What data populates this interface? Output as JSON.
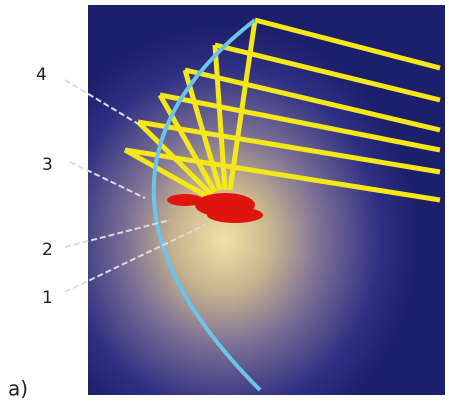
{
  "labels": [
    "1",
    "2",
    "3",
    "4"
  ],
  "caption": "a)"
}
